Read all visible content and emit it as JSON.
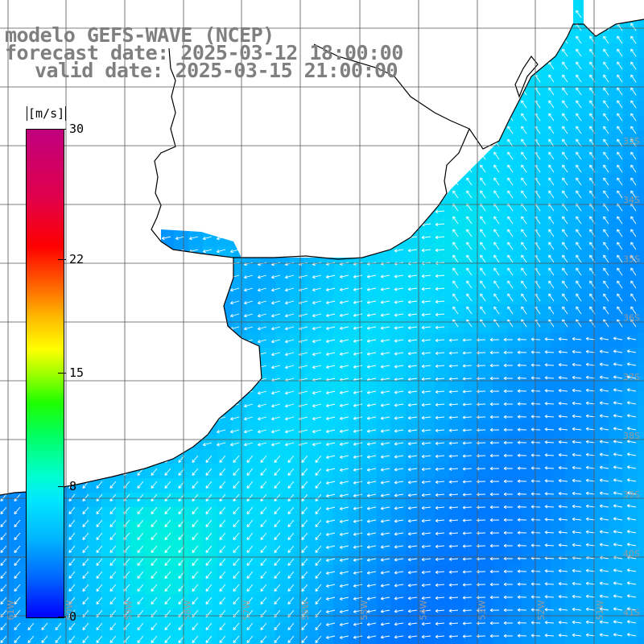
{
  "header": {
    "model_line": "modelo GEFS-WAVE (NCEP)",
    "forecast_line": "forecast date: 2025-03-12 18:00:00",
    "valid_line": "valid date: 2025-03-15 21:00:00"
  },
  "colorbar": {
    "unit": "[m/s]",
    "ticks": [
      {
        "label": "30",
        "value": 30
      },
      {
        "label": "22",
        "value": 22
      },
      {
        "label": "15",
        "value": 15
      },
      {
        "label": "8",
        "value": 8
      },
      {
        "label": "0",
        "value": 0
      }
    ],
    "range": [
      0,
      30
    ]
  },
  "map": {
    "lon_labels": [
      "61W",
      "60W",
      "59W",
      "58W",
      "57W",
      "56W",
      "55W",
      "54W",
      "53W",
      "52W",
      "51W"
    ],
    "lat_labels": [
      "33S",
      "34S",
      "35S",
      "36S",
      "37S",
      "38S",
      "39S",
      "40S",
      "41S"
    ],
    "land_color": "#ffffff",
    "grid_color": "#555555",
    "coast_color": "#000000",
    "arrow_color": "#ffffff",
    "field": "10 m wind speed and direction"
  }
}
